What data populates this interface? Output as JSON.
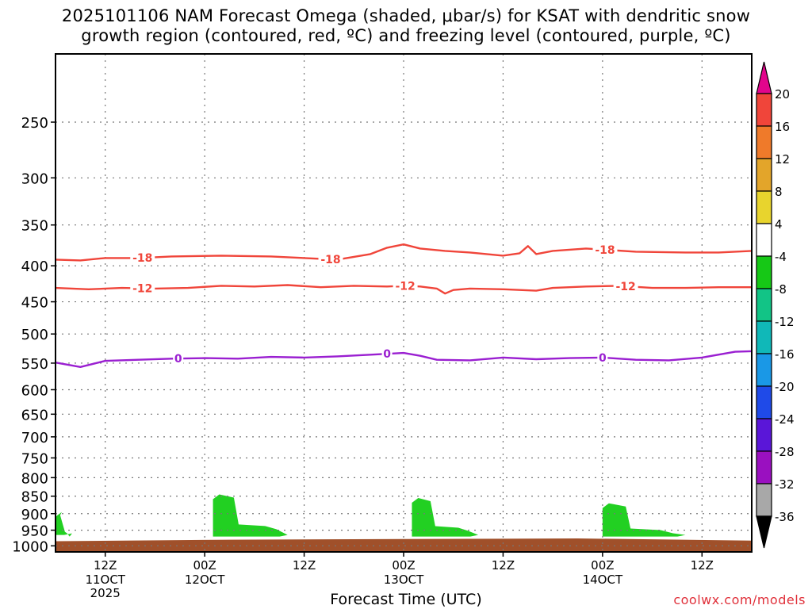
{
  "title": {
    "line1": "2025101106 NAM Forecast Omega (shaded, μbar/s) for KSAT with dendritic snow",
    "line2": "growth region (contoured, red, ºC) and freezing level (contoured, purple, ºC)"
  },
  "credit": "coolwx.com/models",
  "colors": {
    "dgz": "#f0453a",
    "freezing": "#9a1fd1",
    "omega_neg": "#22d022",
    "ground": "#a0502a",
    "grid": "#777777"
  },
  "chart_data": {
    "type": "area",
    "title": "2025101106 NAM Forecast Omega (shaded, μbar/s) for KSAT with dendritic snow growth region (contoured, red, ºC) and freezing level (contoured, purple, ºC)",
    "xlabel": "Forecast Time (UTC)",
    "ylabel": "",
    "x_unit": "forecast hour",
    "xlim": [
      0,
      84
    ],
    "ylim_pressure": [
      1020,
      200
    ],
    "x_ticks": [
      {
        "hour": 6,
        "label": "12Z",
        "sub": "11OCT",
        "sub2": "2025"
      },
      {
        "hour": 18,
        "label": "00Z",
        "sub": "12OCT",
        "sub2": ""
      },
      {
        "hour": 30,
        "label": "12Z",
        "sub": "",
        "sub2": ""
      },
      {
        "hour": 42,
        "label": "00Z",
        "sub": "13OCT",
        "sub2": ""
      },
      {
        "hour": 54,
        "label": "12Z",
        "sub": "",
        "sub2": ""
      },
      {
        "hour": 66,
        "label": "00Z",
        "sub": "14OCT",
        "sub2": ""
      },
      {
        "hour": 78,
        "label": "12Z",
        "sub": "",
        "sub2": ""
      }
    ],
    "y_ticks": [
      250,
      300,
      350,
      400,
      450,
      500,
      550,
      600,
      650,
      700,
      750,
      800,
      850,
      900,
      950,
      1000
    ],
    "series": [
      {
        "name": "-18",
        "kind": "dgz",
        "x": [
          0,
          3,
          6,
          10,
          14,
          20,
          26,
          30,
          34,
          38,
          40,
          42,
          44,
          47,
          50,
          54,
          56,
          57,
          58,
          60,
          64,
          70,
          76,
          80,
          84
        ],
        "y": [
          392,
          393,
          390,
          390,
          388,
          387,
          388,
          390,
          392,
          385,
          377,
          373,
          378,
          381,
          383,
          387,
          384,
          375,
          385,
          381,
          378,
          382,
          383,
          383,
          381
        ],
        "labels": [
          {
            "x": 10.5,
            "text": "-18"
          },
          {
            "x": 33.2,
            "text": "-18"
          },
          {
            "x": 66.3,
            "text": "-18"
          }
        ]
      },
      {
        "name": "-12",
        "kind": "dgz",
        "x": [
          0,
          4,
          8,
          12,
          16,
          20,
          24,
          28,
          32,
          36,
          40,
          42,
          44,
          46,
          47,
          48,
          50,
          54,
          58,
          60,
          64,
          68,
          72,
          76,
          80,
          84
        ],
        "y": [
          430,
          432,
          430,
          431,
          430,
          427,
          428,
          426,
          429,
          427,
          428,
          427,
          428,
          431,
          438,
          433,
          431,
          432,
          434,
          430,
          428,
          427,
          430,
          430,
          429,
          429
        ],
        "labels": [
          {
            "x": 10.5,
            "text": "-12"
          },
          {
            "x": 42.2,
            "text": "-12"
          },
          {
            "x": 68.8,
            "text": "-12"
          }
        ]
      },
      {
        "name": "0",
        "kind": "freezing",
        "x": [
          0,
          3,
          6,
          10,
          14,
          18,
          22,
          26,
          30,
          34,
          38,
          42,
          44,
          46,
          50,
          54,
          58,
          62,
          66,
          70,
          74,
          78,
          82,
          84
        ],
        "y": [
          549,
          557,
          546,
          544,
          542,
          541,
          542,
          539,
          540,
          538,
          535,
          532,
          537,
          544,
          545,
          540,
          543,
          541,
          540,
          544,
          545,
          540,
          530,
          529
        ],
        "labels": [
          {
            "x": 14.8,
            "text": "0"
          },
          {
            "x": 40.0,
            "text": "0"
          },
          {
            "x": 66.0,
            "text": "0"
          }
        ]
      }
    ],
    "omega_regions": [
      {
        "level": "-8 to -4",
        "x_start": 0,
        "x_end": 2,
        "p_top": 895,
        "p_bottom": 965
      },
      {
        "level": "-8 to -4",
        "x_start": 19,
        "x_end": 28,
        "p_top": 845,
        "p_bottom": 970
      },
      {
        "level": "-8 to -4",
        "x_start": 43,
        "x_end": 51,
        "p_top": 855,
        "p_bottom": 970
      },
      {
        "level": "-8 to -4",
        "x_start": 66,
        "x_end": 76,
        "p_top": 870,
        "p_bottom": 970
      }
    ],
    "ground_pressure_approx": [
      985,
      980,
      978,
      976,
      983
    ],
    "colorbar": {
      "levels": [
        "20",
        "16",
        "12",
        "8",
        "4",
        "-4",
        "-8",
        "-12",
        "-16",
        "-20",
        "-24",
        "-28",
        "-32",
        "-36"
      ],
      "colors": [
        "#e2058c",
        "#f0453a",
        "#ef7a2a",
        "#e3a52a",
        "#e8d42d",
        "#ffffff",
        "#16c816",
        "#12c486",
        "#10b8b8",
        "#1a98e6",
        "#1f4ae8",
        "#5a16d8",
        "#9a10c0",
        "#a8a8a8",
        "#000000"
      ]
    }
  }
}
